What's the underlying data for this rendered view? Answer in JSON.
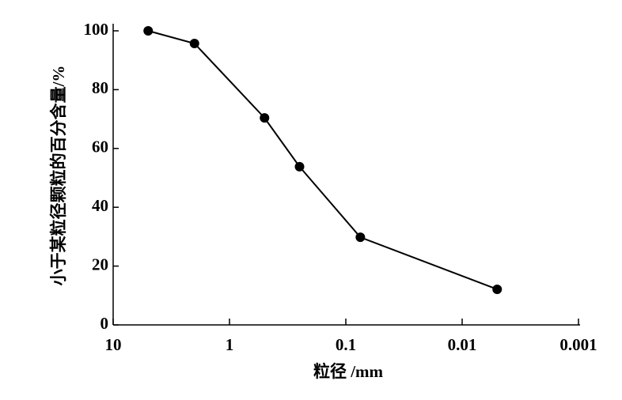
{
  "chart_data": {
    "type": "line",
    "x_label": "粒径  /mm",
    "y_label": "小于某粒径颗粒的百分含量/%",
    "x": [
      5,
      2,
      0.5,
      0.25,
      0.075,
      0.005
    ],
    "series": [
      {
        "color": "#000000",
        "values": [
          100,
          95.7,
          70.4,
          53.8,
          29.8,
          12.1
        ]
      }
    ],
    "xlim": [
      10,
      0.001
    ],
    "xticks": [
      10,
      1,
      0.1,
      0.01,
      0.001
    ],
    "xlog": true,
    "ylim": [
      0,
      100
    ],
    "yticks": [
      0,
      20,
      40,
      60,
      80,
      100
    ],
    "grid": false
  }
}
